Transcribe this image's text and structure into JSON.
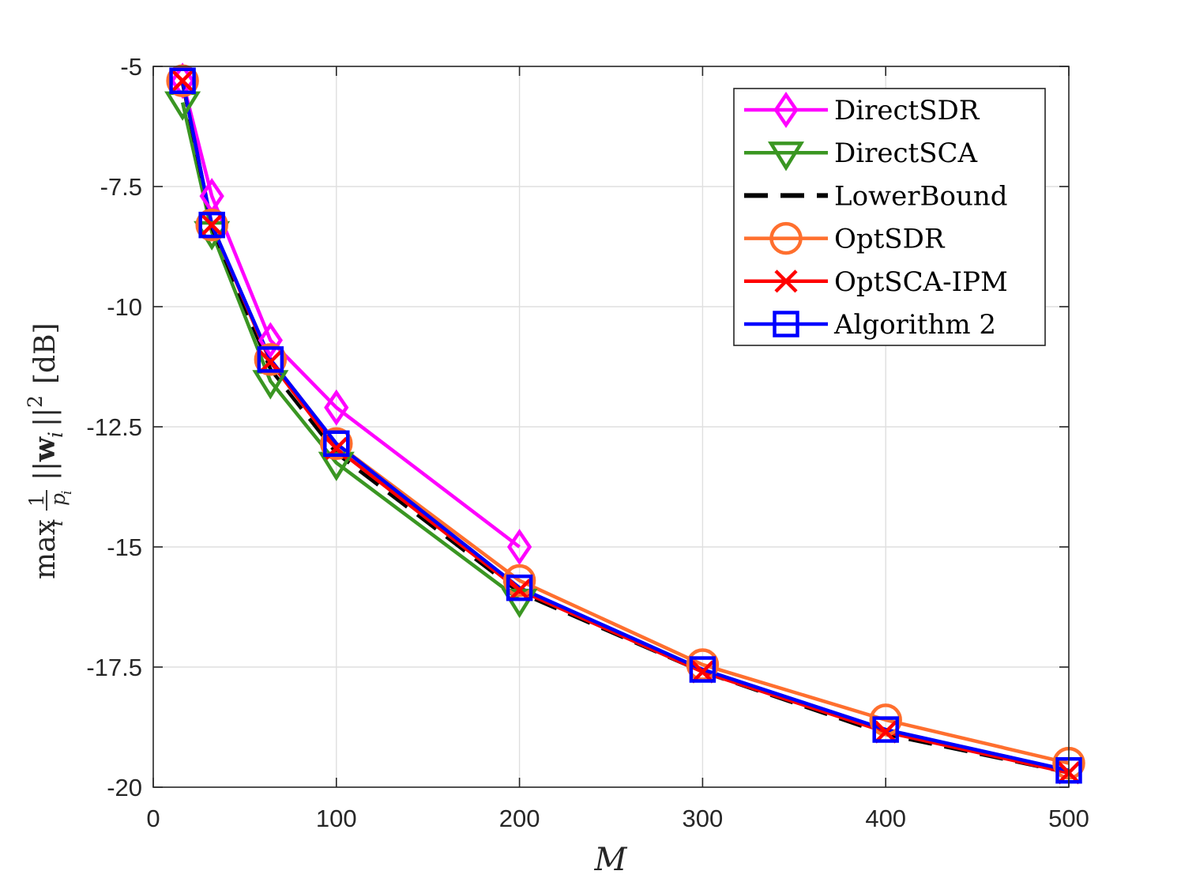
{
  "chart_data": {
    "type": "line",
    "xlabel": "M",
    "ylabel": {
      "prefix": "max",
      "index": "i",
      "frac_num": "1",
      "frac_den": "p",
      "frac_den_sub": "i",
      "norm_open": "||",
      "vec": "w",
      "vec_sub": "i",
      "norm_close": "||",
      "exp": "2",
      "unit": "[dB]"
    },
    "xlim": [
      0,
      500
    ],
    "ylim": [
      -20,
      -5
    ],
    "xticks": [
      0,
      100,
      200,
      300,
      400,
      500
    ],
    "xtick_labels": [
      "0",
      "100",
      "200",
      "300",
      "400",
      "500"
    ],
    "yticks": [
      -5,
      -7.5,
      -10,
      -12.5,
      -15,
      -17.5,
      -20
    ],
    "ytick_labels": [
      "-5",
      "-7.5",
      "-10",
      "-12.5",
      "-15",
      "-17.5",
      "-20"
    ],
    "grid": true,
    "legend_position": "top-right",
    "series": [
      {
        "name": "DirectSDR",
        "color": "#ff00ff",
        "marker": "diamond",
        "dash": "solid",
        "x": [
          16,
          32,
          64,
          100,
          200
        ],
        "y": [
          -5.3,
          -7.7,
          -10.7,
          -12.1,
          -15.0
        ]
      },
      {
        "name": "DirectSCA",
        "color": "#3a9622",
        "marker": "triangle-down",
        "dash": "solid",
        "x": [
          16,
          32,
          64,
          100,
          200
        ],
        "y": [
          -5.75,
          -8.45,
          -11.55,
          -13.25,
          -16.1
        ]
      },
      {
        "name": "LowerBound",
        "color": "#000000",
        "marker": "none",
        "dash": "dashed",
        "x": [
          16,
          32,
          64,
          100,
          200,
          300,
          400,
          500
        ],
        "y": [
          -5.35,
          -8.35,
          -11.3,
          -13.05,
          -15.95,
          -17.6,
          -18.9,
          -19.7
        ]
      },
      {
        "name": "OptSDR",
        "color": "#ff6f2e",
        "marker": "circle",
        "dash": "solid",
        "x": [
          16,
          32,
          64,
          100,
          200,
          300,
          400,
          500
        ],
        "y": [
          -5.3,
          -8.3,
          -11.1,
          -12.85,
          -15.7,
          -17.45,
          -18.6,
          -19.5
        ]
      },
      {
        "name": "OptSCA-IPM",
        "color": "#ff0000",
        "marker": "x",
        "dash": "solid",
        "x": [
          16,
          32,
          64,
          100,
          200,
          300,
          400,
          500
        ],
        "y": [
          -5.3,
          -8.3,
          -11.15,
          -12.95,
          -15.9,
          -17.6,
          -18.85,
          -19.7
        ]
      },
      {
        "name": "Algorithm 2",
        "color": "#0000ff",
        "marker": "square",
        "dash": "solid",
        "x": [
          16,
          32,
          64,
          100,
          200,
          300,
          400,
          500
        ],
        "y": [
          -5.3,
          -8.3,
          -11.1,
          -12.85,
          -15.85,
          -17.55,
          -18.8,
          -19.65
        ]
      }
    ]
  }
}
